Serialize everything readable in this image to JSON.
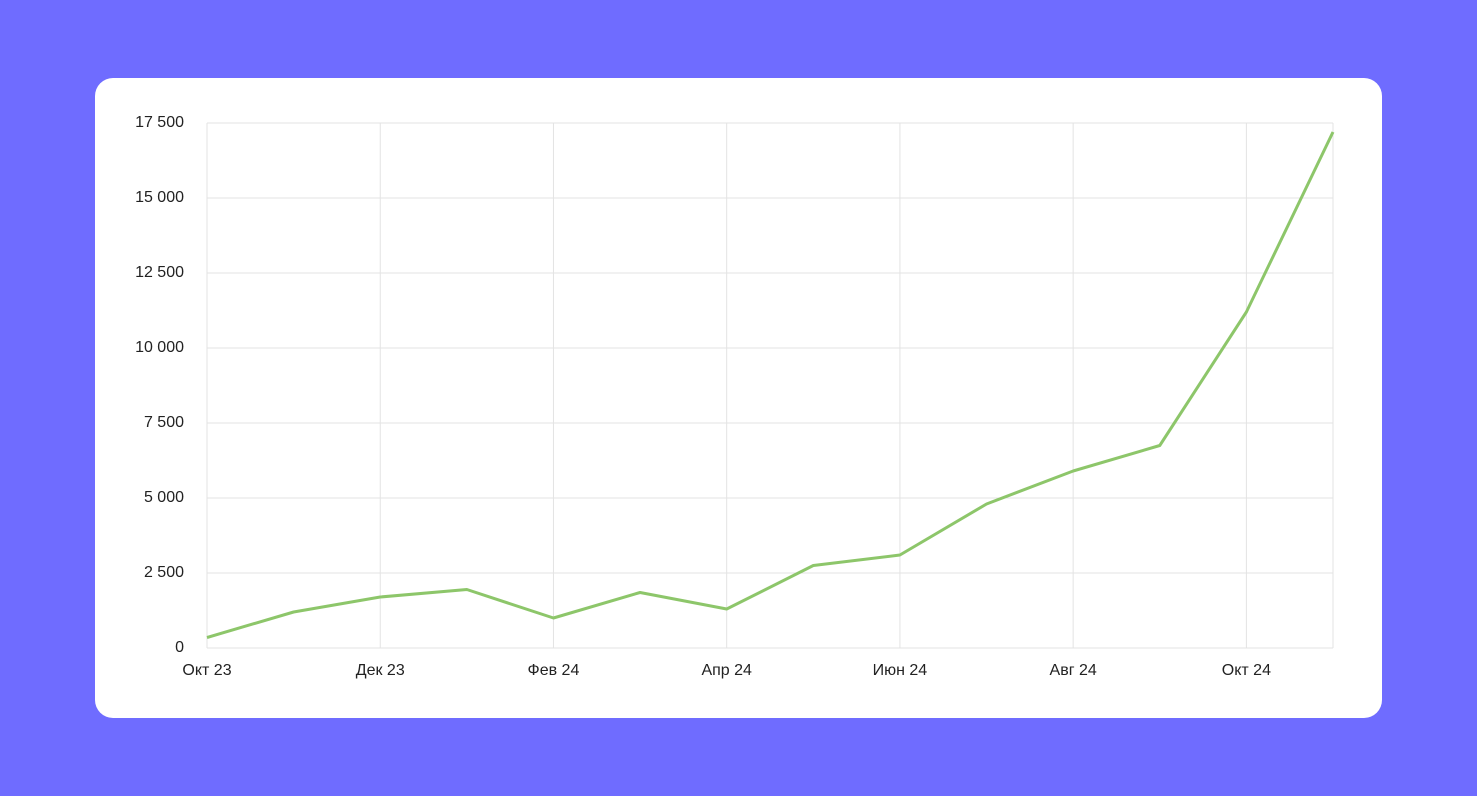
{
  "chart_data": {
    "type": "line",
    "categories": [
      "Окт 23",
      null,
      "Дек 23",
      null,
      "Фев 24",
      null,
      "Апр 24",
      null,
      "Июн 24",
      null,
      "Авг 24",
      null,
      "Окт 24",
      null
    ],
    "series": [
      {
        "color": "#8dc66a",
        "values": [
          350,
          1200,
          1700,
          1950,
          1000,
          1850,
          1300,
          2750,
          3100,
          4800,
          5900,
          6750,
          11200,
          17200
        ]
      }
    ],
    "ylim": [
      0,
      17500
    ],
    "yticks": [
      0,
      {
        "value": 2500,
        "label": "2 500"
      },
      {
        "value": 5000,
        "label": "5 000"
      },
      {
        "value": 7500,
        "label": "7 500"
      },
      {
        "value": 10000,
        "label": "10 000"
      },
      {
        "value": 12500,
        "label": "12 500"
      },
      {
        "value": 15000,
        "label": "15 000"
      },
      {
        "value": 17500,
        "label": "17 500"
      }
    ],
    "grid": true
  }
}
